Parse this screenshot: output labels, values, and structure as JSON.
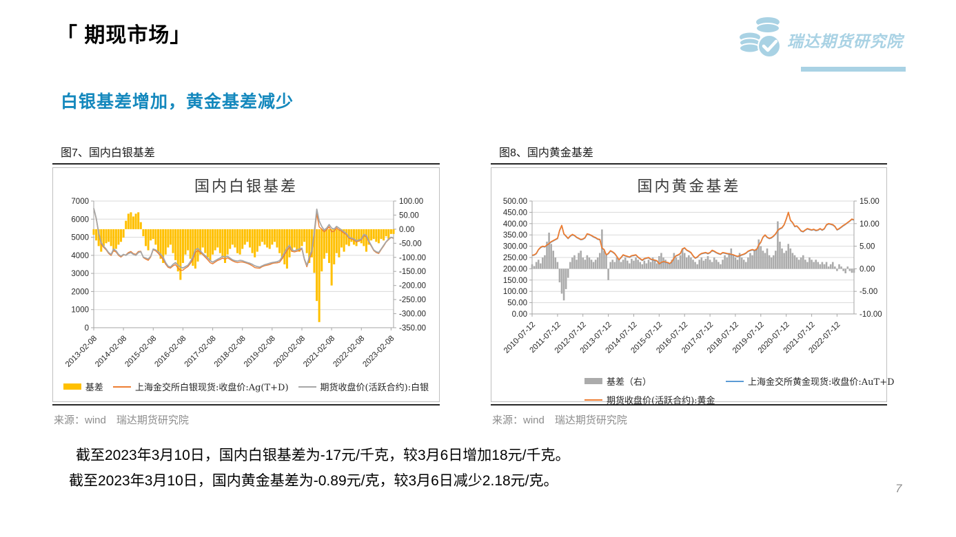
{
  "page": {
    "title": "「 期现市场」",
    "subtitle": "白银基差增加，黄金基差减少",
    "logo_text": "瑞达期货研究院",
    "page_number": "7"
  },
  "summary": {
    "line1": "截至2023年3月10日，国内白银基差为-17元/千克，较3月6日增加18元/千克。",
    "line2": "截至2023年3月10日，国内黄金基差为-0.89元/克，较3月6日减少2.18元/克。"
  },
  "chart_data": [
    {
      "figure_label": "图7、国内白银基差",
      "title": "国内白银基差",
      "type": "combo",
      "source": "来源：wind　瑞达期货研究院",
      "left_axis": {
        "min": 0,
        "max": 7000,
        "step": 1000,
        "decimals": 0
      },
      "right_axis": {
        "min": -350,
        "max": 100,
        "step": 50,
        "decimals": 2
      },
      "x_tick_every": 12,
      "x_tick_labels": [
        "2013-02-08",
        "2014-02-08",
        "2015-02-08",
        "2016-02-08",
        "2017-02-08",
        "2018-02-08",
        "2019-02-08",
        "2020-02-08",
        "2021-02-08",
        "2022-02-08",
        "2023-02-08"
      ],
      "x_unit": "month",
      "series": [
        {
          "name": "基差",
          "type": "bar",
          "axis": "right",
          "color": "#FFC000",
          "values": [
            -20,
            -40,
            -60,
            -80,
            -60,
            -50,
            -45,
            -60,
            -80,
            -70,
            -55,
            -45,
            -30,
            30,
            55,
            60,
            45,
            55,
            60,
            25,
            -25,
            -60,
            -75,
            -40,
            -35,
            -55,
            -85,
            -105,
            -120,
            -90,
            -65,
            -55,
            -85,
            -110,
            -150,
            -180,
            -120,
            -90,
            -75,
            -105,
            -130,
            -140,
            -115,
            -90,
            -65,
            -85,
            -100,
            -110,
            -90,
            -75,
            -65,
            -85,
            -100,
            -120,
            -90,
            -70,
            -55,
            -65,
            -85,
            -90,
            -70,
            -55,
            -45,
            -65,
            -85,
            -100,
            -80,
            -60,
            -45,
            -55,
            -65,
            -70,
            -55,
            -45,
            -65,
            -85,
            -105,
            -125,
            -140,
            -100,
            -80,
            -65,
            -75,
            -80,
            -60,
            -45,
            -85,
            -120,
            -100,
            -155,
            -255,
            -330,
            -150,
            -105,
            -85,
            -120,
            -200,
            -125,
            -85,
            -100,
            -65,
            -80,
            -55,
            -60,
            -45,
            -55,
            -60,
            -45,
            -50,
            -60,
            -80,
            -55,
            -40,
            -35,
            -45,
            -50,
            -35,
            -40,
            -25,
            -35,
            -17,
            -17
          ]
        },
        {
          "name": "上海金交所白银现货:收盘价:Ag(T+D)",
          "type": "line",
          "axis": "left",
          "color": "#ED7D31",
          "width": 1.4,
          "values": [
            6580,
            6010,
            5190,
            4620,
            4440,
            4300,
            4105,
            3990,
            4270,
            4180,
            3995,
            3905,
            4020,
            4030,
            4155,
            4210,
            4095,
            4055,
            4210,
            4225,
            3875,
            3790,
            3725,
            3910,
            4315,
            4245,
            4115,
            3945,
            3780,
            3510,
            3335,
            3295,
            3415,
            3490,
            3300,
            3170,
            3180,
            3290,
            3375,
            3545,
            3770,
            4160,
            4265,
            4160,
            4035,
            3895,
            3750,
            3590,
            3530,
            3625,
            3715,
            3765,
            3850,
            3780,
            3860,
            3780,
            3695,
            3635,
            3595,
            3630,
            3630,
            3595,
            3555,
            3495,
            3415,
            3320,
            3300,
            3290,
            3375,
            3425,
            3455,
            3490,
            3545,
            3575,
            3585,
            3615,
            3795,
            4025,
            4260,
            4450,
            4220,
            4185,
            4225,
            4270,
            4340,
            3755,
            3365,
            3780,
            4150,
            5145,
            6295,
            5570,
            5450,
            5295,
            5415,
            5580,
            5300,
            5325,
            5515,
            5400,
            5335,
            5220,
            5145,
            4940,
            4905,
            4845,
            4740,
            4805,
            4850,
            5090,
            5020,
            4745,
            4510,
            4265,
            4155,
            4100,
            4315,
            4510,
            4725,
            4865,
            4983,
            4933
          ]
        },
        {
          "name": "期货收盘价(活跃合约):白银",
          "type": "line",
          "axis": "left",
          "color": "#A6A6A6",
          "width": 1.8,
          "values": [
            6600,
            6050,
            5250,
            4700,
            4500,
            4350,
            4150,
            4050,
            4350,
            4250,
            4050,
            3950,
            4050,
            4000,
            4100,
            4150,
            4050,
            4000,
            4150,
            4200,
            3900,
            3850,
            3800,
            3950,
            4350,
            4300,
            4200,
            4050,
            3900,
            3600,
            3400,
            3350,
            3500,
            3600,
            3450,
            3350,
            3300,
            3380,
            3450,
            3650,
            3900,
            4300,
            4380,
            4250,
            4100,
            3980,
            3850,
            3700,
            3620,
            3700,
            3780,
            3850,
            3950,
            3900,
            3950,
            3850,
            3750,
            3700,
            3680,
            3720,
            3700,
            3650,
            3600,
            3560,
            3500,
            3420,
            3380,
            3350,
            3420,
            3480,
            3520,
            3560,
            3600,
            3620,
            3650,
            3700,
            3900,
            4150,
            4400,
            4550,
            4300,
            4250,
            4300,
            4350,
            4400,
            3800,
            3450,
            3900,
            4250,
            5300,
            6550,
            5900,
            5600,
            5400,
            5500,
            5700,
            5500,
            5450,
            5600,
            5500,
            5400,
            5300,
            5200,
            5000,
            4950,
            4900,
            4800,
            4850,
            4900,
            5150,
            5100,
            4800,
            4550,
            4300,
            4200,
            4150,
            4350,
            4550,
            4750,
            4900,
            5000,
            4950
          ]
        }
      ]
    },
    {
      "figure_label": "图8、国内黄金基差",
      "title": "国内黄金基差",
      "type": "combo",
      "source": "来源：wind　瑞达期货研究院",
      "left_axis": {
        "min": 0,
        "max": 500,
        "step": 50,
        "decimals": 2
      },
      "right_axis": {
        "min": -10,
        "max": 15,
        "step": 5,
        "decimals": 2
      },
      "x_tick_every": 12,
      "x_tick_labels": [
        "2010-07-12",
        "2011-07-12",
        "2012-07-12",
        "2013-07-12",
        "2014-07-12",
        "2015-07-12",
        "2016-07-12",
        "2017-07-12",
        "2018-07-12",
        "2019-07-12",
        "2020-07-12",
        "2021-07-12",
        "2022-07-12"
      ],
      "x_unit": "month",
      "series": [
        {
          "name": "基差（右）",
          "type": "bar",
          "axis": "right",
          "color": "#ABABAB",
          "values": [
            1.0,
            0.6,
            1.5,
            2.0,
            1.2,
            2.5,
            3.0,
            6.0,
            8.0,
            5.5,
            4.0,
            2.5,
            1.5,
            -3.0,
            -5.5,
            -7.0,
            -4.5,
            -2.0,
            1.5,
            2.5,
            3.0,
            2.0,
            3.5,
            4.0,
            2.5,
            2.0,
            3.0,
            2.5,
            2.0,
            1.5,
            2.0,
            2.5,
            3.5,
            8.7,
            4.0,
            3.0,
            -2.5,
            1.5,
            2.0,
            1.5,
            2.5,
            2.0,
            1.5,
            2.0,
            2.5,
            1.8,
            1.2,
            2.2,
            1.8,
            2.5,
            2.0,
            1.5,
            1.0,
            1.8,
            1.2,
            2.0,
            1.5,
            2.5,
            1.8,
            1.2,
            2.8,
            3.5,
            2.5,
            2.0,
            1.5,
            1.0,
            2.0,
            3.5,
            2.5,
            2.0,
            3.0,
            4.5,
            3.5,
            2.5,
            3.0,
            2.5,
            2.0,
            1.5,
            1.0,
            2.0,
            2.5,
            1.8,
            2.2,
            2.8,
            2.0,
            1.5,
            2.5,
            2.0,
            1.5,
            1.0,
            2.0,
            3.0,
            2.5,
            3.5,
            4.5,
            3.0,
            2.5,
            2.0,
            3.5,
            2.5,
            2.0,
            1.5,
            2.5,
            3.5,
            3.0,
            4.0,
            4.5,
            6.5,
            5.0,
            4.0,
            3.5,
            4.5,
            3.0,
            2.5,
            3.0,
            4.0,
            10.5,
            6.0,
            4.5,
            3.5,
            4.0,
            5.5,
            4.5,
            3.5,
            3.0,
            2.5,
            2.0,
            2.5,
            3.0,
            2.0,
            1.5,
            2.5,
            2.0,
            1.5,
            2.0,
            1.5,
            1.0,
            1.5,
            1.0,
            1.5,
            0.5,
            1.0,
            1.5,
            0.5,
            -0.5,
            1.0,
            0.5,
            -0.5,
            -1.0,
            0.5,
            -0.5,
            -0.89,
            -0.89
          ]
        },
        {
          "name": "上海金交所黄金现货:收盘价:AuT+D",
          "type": "line",
          "axis": "left",
          "color": "#5B9BD5",
          "width": 1.4,
          "values": [
            258,
            260,
            266,
            283,
            293,
            298,
            296,
            303,
            310,
            318,
            323,
            328,
            333,
            368,
            390,
            353,
            343,
            333,
            343,
            350,
            346,
            338,
            333,
            328,
            330,
            336,
            353,
            350,
            346,
            340,
            336,
            330,
            328,
            290,
            283,
            260,
            266,
            278,
            273,
            266,
            253,
            238,
            248,
            260,
            256,
            253,
            250,
            256,
            258,
            260,
            250,
            243,
            236,
            243,
            246,
            248,
            241,
            238,
            236,
            233,
            220,
            226,
            230,
            228,
            226,
            221,
            230,
            246,
            256,
            260,
            266,
            286,
            291,
            281,
            276,
            270,
            256,
            246,
            250,
            260,
            266,
            268,
            270,
            266,
            270,
            280,
            276,
            270,
            266,
            263,
            270,
            268,
            266,
            264,
            262,
            260,
            256,
            253,
            256,
            260,
            263,
            268,
            276,
            280,
            283,
            280,
            283,
            303,
            316,
            338,
            348,
            338,
            333,
            336,
            343,
            353,
            368,
            376,
            380,
            393,
            418,
            448,
            413,
            403,
            386,
            388,
            378,
            366,
            363,
            370,
            376,
            373,
            370,
            373,
            368,
            370,
            376,
            370,
            376,
            393,
            398,
            396,
            393,
            386,
            371,
            376,
            383,
            390,
            396,
            403,
            410,
            418,
            415
          ]
        },
        {
          "name": "期货收盘价(活跃合约):黄金",
          "type": "line",
          "axis": "left",
          "color": "#ED7D31",
          "width": 1.8,
          "values": [
            260,
            262,
            268,
            285,
            295,
            300,
            298,
            305,
            312,
            320,
            325,
            330,
            335,
            370,
            392,
            355,
            345,
            335,
            345,
            352,
            348,
            340,
            335,
            330,
            332,
            338,
            355,
            352,
            348,
            342,
            338,
            332,
            330,
            292,
            285,
            262,
            268,
            280,
            275,
            268,
            255,
            240,
            250,
            262,
            258,
            255,
            252,
            258,
            260,
            262,
            252,
            245,
            238,
            245,
            248,
            250,
            243,
            240,
            238,
            235,
            222,
            228,
            232,
            230,
            228,
            223,
            232,
            248,
            258,
            262,
            268,
            288,
            293,
            283,
            278,
            272,
            258,
            248,
            252,
            262,
            268,
            270,
            272,
            268,
            272,
            282,
            278,
            272,
            268,
            265,
            272,
            270,
            268,
            266,
            264,
            262,
            258,
            255,
            258,
            262,
            265,
            270,
            278,
            282,
            285,
            282,
            285,
            305,
            318,
            340,
            350,
            340,
            335,
            338,
            345,
            355,
            370,
            378,
            382,
            395,
            420,
            450,
            415,
            405,
            388,
            390,
            380,
            368,
            365,
            372,
            378,
            375,
            372,
            375,
            370,
            372,
            378,
            372,
            378,
            395,
            400,
            398,
            395,
            388,
            373,
            378,
            385,
            392,
            398,
            405,
            412,
            420,
            417
          ]
        }
      ]
    }
  ]
}
